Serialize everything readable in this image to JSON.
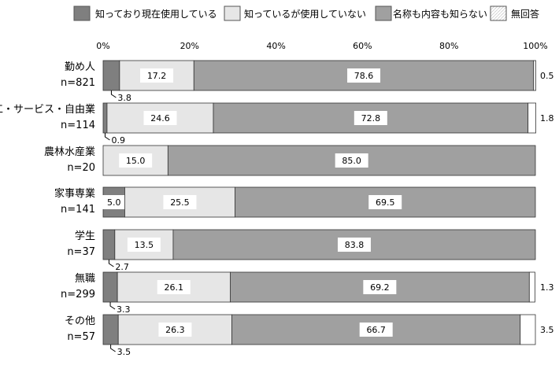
{
  "chart_data": {
    "type": "bar",
    "stacked": true,
    "orientation": "horizontal",
    "x_ticks": [
      "0%",
      "20%",
      "40%",
      "60%",
      "80%",
      "100%"
    ],
    "xlim": [
      0,
      100
    ],
    "legend_position": "top",
    "series": [
      {
        "name": "知っており現在使用している",
        "color": "#7f7f7f",
        "values": [
          3.8,
          0.9,
          0.0,
          5.0,
          2.7,
          3.3,
          3.5
        ]
      },
      {
        "name": "知っているが使用していない",
        "color": "#e6e6e6",
        "values": [
          17.2,
          24.6,
          15.0,
          25.5,
          13.5,
          26.1,
          26.3
        ]
      },
      {
        "name": "名称も内容も知らない",
        "color": "#a0a0a0",
        "values": [
          78.6,
          72.8,
          85.0,
          69.5,
          83.8,
          69.2,
          66.7
        ]
      },
      {
        "name": "無回答",
        "color": "#ffffff",
        "values": [
          0.5,
          1.8,
          0.0,
          0.0,
          0.0,
          1.3,
          3.5
        ]
      }
    ],
    "categories": [
      {
        "name": "勤め人",
        "n": "n=821"
      },
      {
        "name": "商工・サービス・自由業",
        "n": "n=114"
      },
      {
        "name": "農林水産業",
        "n": "n=20"
      },
      {
        "name": "家事専業",
        "n": "n=141"
      },
      {
        "name": "学生",
        "n": "n=37"
      },
      {
        "name": "無職",
        "n": "n=299"
      },
      {
        "name": "その他",
        "n": "n=57"
      }
    ],
    "labels": [
      {
        "inside": [
          "",
          "17.2",
          "78.6",
          ""
        ],
        "below": "3.8",
        "right": "0.5"
      },
      {
        "inside": [
          "",
          "24.6",
          "72.8",
          ""
        ],
        "below": "0.9",
        "right": "1.8"
      },
      {
        "inside": [
          "",
          "15.0",
          "85.0",
          ""
        ],
        "below": "",
        "right": ""
      },
      {
        "inside": [
          "5.0",
          "25.5",
          "69.5",
          ""
        ],
        "below": "",
        "right": ""
      },
      {
        "inside": [
          "",
          "13.5",
          "83.8",
          ""
        ],
        "below": "2.7",
        "right": ""
      },
      {
        "inside": [
          "",
          "26.1",
          "69.2",
          ""
        ],
        "below": "3.3",
        "right": "1.3"
      },
      {
        "inside": [
          "",
          "26.3",
          "66.7",
          ""
        ],
        "below": "3.5",
        "right": "3.5"
      }
    ]
  }
}
